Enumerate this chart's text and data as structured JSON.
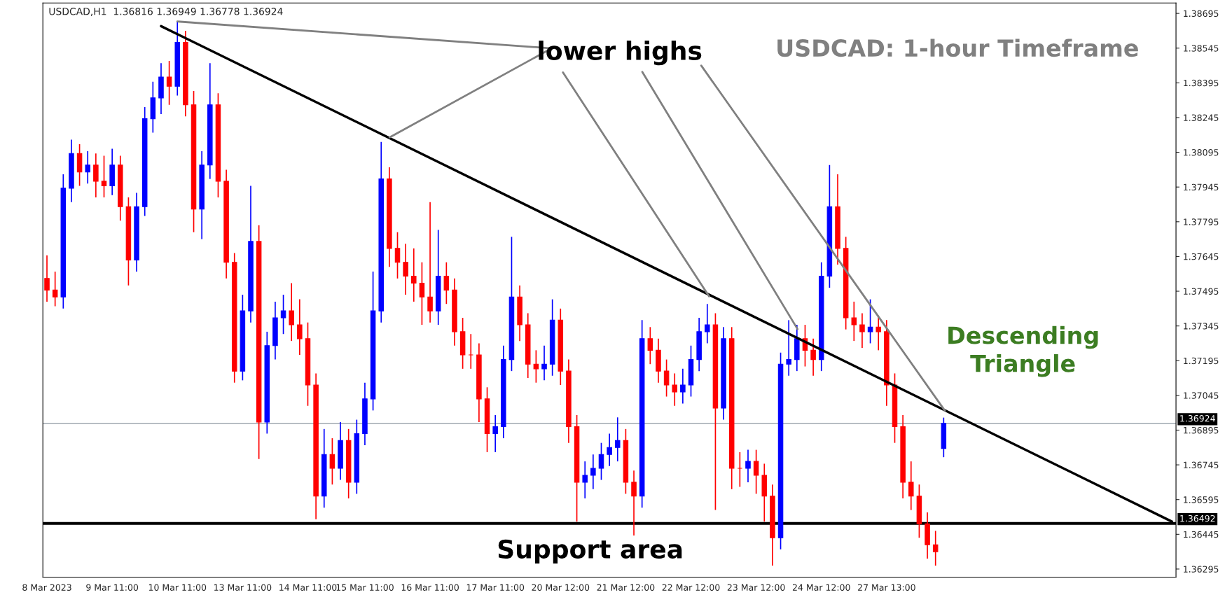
{
  "chart_data": {
    "type": "candlestick",
    "title": "USDCAD: 1-hour Timeframe",
    "subtitle": "USDCAD,H1  1.36816 1.36949 1.36778 1.36924",
    "annotations": [
      {
        "text": "lower highs",
        "x": "10 Mar 11:00",
        "y": 1.3866
      },
      "Descending\nTriangle",
      "Support area"
    ],
    "categories": [
      "8 Mar 2023",
      null,
      null,
      null,
      null,
      null,
      null,
      null,
      "9 Mar 11:00",
      null,
      null,
      null,
      null,
      null,
      null,
      null,
      "10 Mar 11:00",
      null,
      null,
      null,
      null,
      null,
      null,
      null,
      "13 Mar 11:00",
      null,
      null,
      null,
      null,
      null,
      null,
      null,
      "14 Mar 11:00",
      null,
      null,
      null,
      null,
      null,
      null,
      "15 Mar 11:00",
      null,
      null,
      null,
      null,
      null,
      null,
      null,
      "16 Mar 11:00",
      null,
      null,
      null,
      null,
      null,
      null,
      null,
      "17 Mar 11:00",
      null,
      null,
      null,
      null,
      null,
      null,
      null,
      "20 Mar 12:00",
      null,
      null,
      null,
      null,
      null,
      null,
      null,
      "21 Mar 12:00",
      null,
      null,
      null,
      null,
      null,
      null,
      null,
      "22 Mar 12:00",
      null,
      null,
      null,
      null,
      null,
      null,
      null,
      "23 Mar 12:00",
      null,
      null,
      null,
      null,
      null,
      null,
      null,
      "24 Mar 12:00",
      null,
      null,
      null,
      null,
      null,
      null,
      null,
      "27 Mar 13:00",
      null,
      null,
      null,
      null,
      null,
      null,
      null,
      null,
      null,
      null,
      null,
      null,
      null,
      null,
      null,
      null,
      null,
      null,
      null,
      null,
      null,
      null,
      null,
      null,
      null,
      null,
      null,
      null,
      null,
      null,
      null,
      null,
      null,
      null,
      null
    ],
    "ohlc": [
      [
        1.3755,
        1.3765,
        1.3745,
        1.375
      ],
      [
        1.375,
        1.3758,
        1.3743,
        1.3747
      ],
      [
        1.3747,
        1.38,
        1.3742,
        1.3794
      ],
      [
        1.3794,
        1.3815,
        1.3788,
        1.3809
      ],
      [
        1.3809,
        1.3813,
        1.3795,
        1.3801
      ],
      [
        1.3801,
        1.381,
        1.3796,
        1.3804
      ],
      [
        1.3804,
        1.3809,
        1.379,
        1.3797
      ],
      [
        1.3797,
        1.3808,
        1.379,
        1.3795
      ],
      [
        1.3795,
        1.3811,
        1.3791,
        1.3804
      ],
      [
        1.3804,
        1.3808,
        1.378,
        1.3786
      ],
      [
        1.3786,
        1.379,
        1.3752,
        1.3763
      ],
      [
        1.3763,
        1.3792,
        1.3758,
        1.3786
      ],
      [
        1.3786,
        1.3829,
        1.3782,
        1.3824
      ],
      [
        1.3824,
        1.384,
        1.3818,
        1.3833
      ],
      [
        1.3833,
        1.3848,
        1.3826,
        1.3842
      ],
      [
        1.3842,
        1.3849,
        1.383,
        1.3838
      ],
      [
        1.3838,
        1.3866,
        1.3834,
        1.3857
      ],
      [
        1.3857,
        1.3862,
        1.3825,
        1.383
      ],
      [
        1.383,
        1.3836,
        1.3775,
        1.3785
      ],
      [
        1.3785,
        1.381,
        1.3772,
        1.3804
      ],
      [
        1.3804,
        1.3848,
        1.3798,
        1.383
      ],
      [
        1.383,
        1.3835,
        1.379,
        1.3797
      ],
      [
        1.3797,
        1.3802,
        1.3755,
        1.3762
      ],
      [
        1.3762,
        1.3766,
        1.371,
        1.3715
      ],
      [
        1.3715,
        1.3748,
        1.3711,
        1.3741
      ],
      [
        1.3741,
        1.3795,
        1.3736,
        1.3771
      ],
      [
        1.3771,
        1.3778,
        1.3677,
        1.3693
      ],
      [
        1.3693,
        1.3732,
        1.3688,
        1.3726
      ],
      [
        1.3726,
        1.3745,
        1.372,
        1.3738
      ],
      [
        1.3738,
        1.3748,
        1.3731,
        1.3741
      ],
      [
        1.3741,
        1.3753,
        1.3728,
        1.3735
      ],
      [
        1.3735,
        1.3746,
        1.3722,
        1.3729
      ],
      [
        1.3729,
        1.3736,
        1.37,
        1.3709
      ],
      [
        1.3709,
        1.3714,
        1.3651,
        1.3661
      ],
      [
        1.3661,
        1.369,
        1.3656,
        1.3679
      ],
      [
        1.3679,
        1.3686,
        1.3666,
        1.3673
      ],
      [
        1.3673,
        1.3693,
        1.3668,
        1.3685
      ],
      [
        1.3685,
        1.369,
        1.366,
        1.3667
      ],
      [
        1.3667,
        1.3694,
        1.3662,
        1.3688
      ],
      [
        1.3688,
        1.371,
        1.3683,
        1.3703
      ],
      [
        1.3703,
        1.3758,
        1.3698,
        1.3741
      ],
      [
        1.3741,
        1.3814,
        1.3736,
        1.3798
      ],
      [
        1.3798,
        1.3803,
        1.376,
        1.3768
      ],
      [
        1.3768,
        1.3775,
        1.3755,
        1.3762
      ],
      [
        1.3762,
        1.377,
        1.3748,
        1.3756
      ],
      [
        1.3756,
        1.3768,
        1.3745,
        1.3753
      ],
      [
        1.3753,
        1.3762,
        1.3735,
        1.3747
      ],
      [
        1.3747,
        1.3788,
        1.3736,
        1.3741
      ],
      [
        1.3741,
        1.3776,
        1.3735,
        1.3756
      ],
      [
        1.3756,
        1.3762,
        1.3744,
        1.375
      ],
      [
        1.375,
        1.3755,
        1.3726,
        1.3732
      ],
      [
        1.3732,
        1.3738,
        1.3716,
        1.3722
      ],
      [
        1.3722,
        1.3731,
        1.3716,
        1.3722
      ],
      [
        1.3722,
        1.3727,
        1.3693,
        1.3703
      ],
      [
        1.3703,
        1.3708,
        1.368,
        1.3688
      ],
      [
        1.3688,
        1.3696,
        1.368,
        1.3691
      ],
      [
        1.3691,
        1.3726,
        1.3686,
        1.372
      ],
      [
        1.372,
        1.3773,
        1.3715,
        1.3747
      ],
      [
        1.3747,
        1.3752,
        1.3728,
        1.3735
      ],
      [
        1.3735,
        1.374,
        1.3712,
        1.3718
      ],
      [
        1.3718,
        1.3724,
        1.371,
        1.3716
      ],
      [
        1.3716,
        1.3726,
        1.3711,
        1.3718
      ],
      [
        1.3718,
        1.3746,
        1.3713,
        1.3737
      ],
      [
        1.3737,
        1.3742,
        1.3709,
        1.3715
      ],
      [
        1.3715,
        1.372,
        1.3684,
        1.3691
      ],
      [
        1.3691,
        1.3696,
        1.365,
        1.3667
      ],
      [
        1.3667,
        1.3676,
        1.366,
        1.367
      ],
      [
        1.367,
        1.3679,
        1.3664,
        1.3673
      ],
      [
        1.3673,
        1.3684,
        1.3668,
        1.3679
      ],
      [
        1.3679,
        1.3688,
        1.3674,
        1.3682
      ],
      [
        1.3682,
        1.3695,
        1.3676,
        1.3685
      ],
      [
        1.3685,
        1.369,
        1.3662,
        1.3667
      ],
      [
        1.3667,
        1.3672,
        1.3644,
        1.3661
      ],
      [
        1.3661,
        1.3737,
        1.3656,
        1.3729
      ],
      [
        1.3729,
        1.3734,
        1.3718,
        1.3724
      ],
      [
        1.3724,
        1.3729,
        1.371,
        1.3715
      ],
      [
        1.3715,
        1.372,
        1.3704,
        1.3709
      ],
      [
        1.3709,
        1.3714,
        1.37,
        1.3706
      ],
      [
        1.3706,
        1.3716,
        1.3701,
        1.3709
      ],
      [
        1.3709,
        1.3726,
        1.3704,
        1.372
      ],
      [
        1.372,
        1.3738,
        1.3715,
        1.3732
      ],
      [
        1.3732,
        1.3744,
        1.3727,
        1.3735
      ],
      [
        1.3735,
        1.374,
        1.3655,
        1.3699
      ],
      [
        1.3699,
        1.3734,
        1.3694,
        1.3729
      ],
      [
        1.3729,
        1.3734,
        1.3664,
        1.3673
      ],
      [
        1.3673,
        1.368,
        1.3665,
        1.3673
      ],
      [
        1.3673,
        1.3681,
        1.3667,
        1.3676
      ],
      [
        1.3676,
        1.3681,
        1.3662,
        1.367
      ],
      [
        1.367,
        1.3675,
        1.365,
        1.3661
      ],
      [
        1.3661,
        1.3666,
        1.3631,
        1.3643
      ],
      [
        1.3643,
        1.3723,
        1.3638,
        1.3718
      ],
      [
        1.3718,
        1.3737,
        1.3713,
        1.372
      ],
      [
        1.372,
        1.3735,
        1.3715,
        1.3729
      ],
      [
        1.3729,
        1.3735,
        1.3717,
        1.3724
      ],
      [
        1.3724,
        1.3729,
        1.3713,
        1.372
      ],
      [
        1.372,
        1.3762,
        1.3715,
        1.3756
      ],
      [
        1.3756,
        1.3804,
        1.3751,
        1.3786
      ],
      [
        1.3786,
        1.38,
        1.3761,
        1.3768
      ],
      [
        1.3768,
        1.3773,
        1.3733,
        1.3738
      ],
      [
        1.3738,
        1.3745,
        1.3728,
        1.3735
      ],
      [
        1.3735,
        1.374,
        1.3725,
        1.3732
      ],
      [
        1.3732,
        1.3746,
        1.3727,
        1.3734
      ],
      [
        1.3734,
        1.3739,
        1.3724,
        1.3732
      ],
      [
        1.3732,
        1.3737,
        1.37,
        1.3709
      ],
      [
        1.3709,
        1.3714,
        1.3684,
        1.3691
      ],
      [
        1.3691,
        1.3696,
        1.366,
        1.3667
      ],
      [
        1.3667,
        1.3676,
        1.3655,
        1.3661
      ],
      [
        1.3661,
        1.3666,
        1.3643,
        1.3649
      ],
      [
        1.3649,
        1.3654,
        1.3634,
        1.364
      ],
      [
        1.364,
        1.3646,
        1.3631,
        1.3637
      ],
      [
        1.36816,
        1.36949,
        1.36778,
        1.36924
      ],
      null,
      null,
      null,
      null,
      null,
      null,
      null,
      null,
      null,
      null,
      null,
      null,
      null,
      null,
      null,
      null,
      null,
      null,
      null,
      null,
      null,
      null,
      null,
      null,
      null,
      null,
      null,
      null
    ],
    "colors": [
      "#ff0000",
      "#ff0000",
      "#0000ff",
      "#0000ff",
      "#ff0000",
      "#0000ff",
      "#ff0000",
      "#ff0000",
      "#0000ff",
      "#ff0000",
      "#ff0000",
      "#0000ff",
      "#0000ff",
      "#0000ff",
      "#0000ff",
      "#ff0000",
      "#0000ff",
      "#ff0000",
      "#ff0000",
      "#0000ff",
      "#0000ff",
      "#ff0000",
      "#ff0000",
      "#ff0000",
      "#0000ff",
      "#0000ff",
      "#ff0000",
      "#0000ff",
      "#0000ff",
      "#0000ff",
      "#ff0000",
      "#ff0000",
      "#ff0000",
      "#ff0000",
      "#0000ff",
      "#ff0000",
      "#0000ff",
      "#ff0000",
      "#0000ff",
      "#0000ff",
      "#0000ff",
      "#0000ff",
      "#ff0000",
      "#ff0000",
      "#ff0000",
      "#ff0000",
      "#ff0000",
      "#ff0000",
      "#0000ff",
      "#ff0000",
      "#ff0000",
      "#ff0000",
      "#ff0000",
      "#ff0000",
      "#ff0000",
      "#0000ff",
      "#0000ff",
      "#0000ff",
      "#ff0000",
      "#ff0000",
      "#ff0000",
      "#0000ff",
      "#0000ff",
      "#ff0000",
      "#ff0000",
      "#ff0000",
      "#0000ff",
      "#0000ff",
      "#0000ff",
      "#0000ff",
      "#0000ff",
      "#ff0000",
      "#ff0000",
      "#0000ff",
      "#ff0000",
      "#ff0000",
      "#ff0000",
      "#ff0000",
      "#0000ff",
      "#0000ff",
      "#0000ff",
      "#0000ff",
      "#ff0000",
      "#0000ff",
      "#ff0000",
      "#ff0000",
      "#0000ff",
      "#ff0000",
      "#ff0000",
      "#ff0000",
      "#0000ff",
      "#0000ff",
      "#0000ff",
      "#ff0000",
      "#ff0000",
      "#0000ff",
      "#0000ff",
      "#ff0000",
      "#ff0000",
      "#ff0000",
      "#ff0000",
      "#0000ff",
      "#ff0000",
      "#ff0000",
      "#ff0000",
      "#ff0000",
      "#ff0000",
      "#ff0000",
      "#ff0000",
      "#ff0000",
      "#0000ff",
      null,
      null,
      null,
      null,
      null,
      null,
      null,
      null,
      null,
      null,
      null,
      null,
      null,
      null,
      null,
      null,
      null,
      null,
      null,
      null,
      null,
      null,
      null,
      null,
      null,
      null,
      null,
      null
    ],
    "series": [
      {
        "type": "line",
        "color": "#000000",
        "values": [
          null,
          null,
          null,
          null,
          null,
          null,
          null,
          null,
          null,
          null,
          null,
          null,
          null,
          null,
          1.3864,
          null,
          null,
          null,
          null,
          null,
          null,
          null,
          null,
          null,
          null,
          null,
          null,
          null,
          null,
          null,
          null,
          null,
          null,
          null,
          null,
          null,
          null,
          null,
          null,
          null,
          null,
          null,
          null,
          null,
          null,
          null,
          null,
          null,
          null,
          null,
          null,
          null,
          null,
          null,
          null,
          null,
          null,
          null,
          null,
          null,
          null,
          null,
          null,
          null,
          null,
          null,
          null,
          null,
          null,
          null,
          null,
          null,
          null,
          null,
          null,
          null,
          null,
          null,
          null,
          null,
          null,
          null,
          null,
          null,
          null,
          null,
          null,
          null,
          null,
          null,
          null,
          null,
          null,
          null,
          null,
          null,
          null,
          null,
          null,
          null,
          null,
          null,
          null,
          null,
          null,
          null,
          null,
          null,
          null,
          null,
          null,
          null,
          null,
          null,
          null,
          null,
          null,
          null,
          null,
          null,
          null,
          null,
          null,
          null,
          null,
          null,
          null,
          null,
          null,
          null,
          null,
          null,
          null,
          null,
          null,
          null,
          null,
          null,
          1.365
        ]
      }
    ],
    "ref_lines": [
      {
        "axis": "y",
        "value": 1.36492,
        "label": "1.36492",
        "color": "#000000"
      },
      {
        "axis": "y",
        "value": 1.36924,
        "label": "1.36924",
        "color": "#8c96a0"
      }
    ],
    "ylim": [
      1.3626,
      1.3874
    ],
    "yticks": [
      1.36295,
      1.36445,
      1.36595,
      1.36745,
      1.36895,
      1.37045,
      1.37195,
      1.37345,
      1.37495,
      1.37645,
      1.37795,
      1.37945,
      1.38095,
      1.38245,
      1.38395,
      1.38545,
      1.38695
    ]
  }
}
